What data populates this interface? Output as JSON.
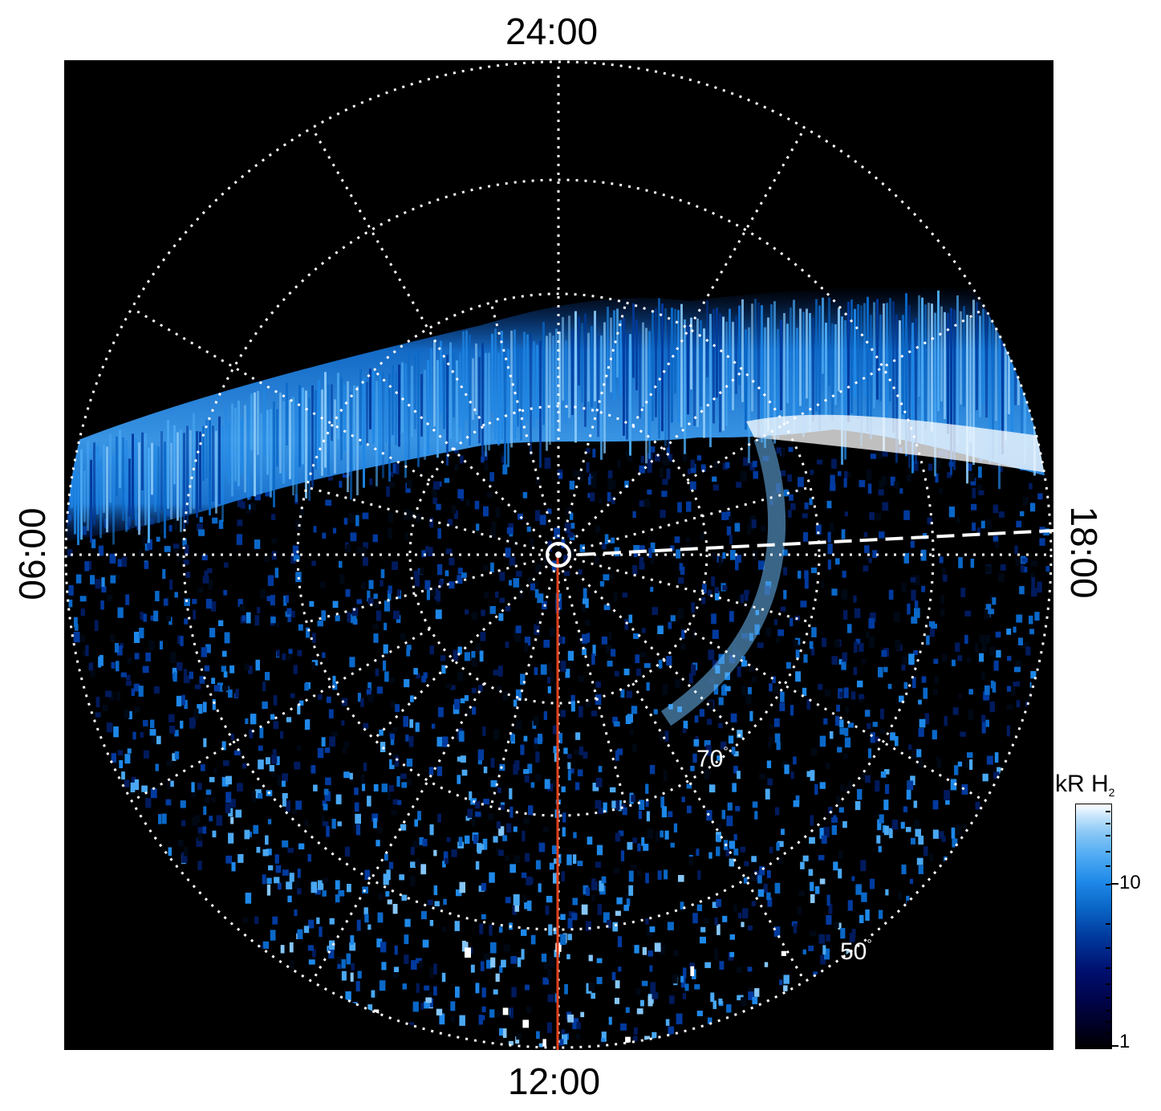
{
  "figure": {
    "local_time_labels": {
      "top": "24:00",
      "bottom": "12:00",
      "left": "06:00",
      "right": "18:00"
    },
    "latitude_labels": {
      "inner": "70",
      "outer": "50",
      "degree_symbol": "°"
    },
    "colorbar": {
      "unit": "kR H",
      "unit_subscript": "2",
      "ticks": [
        "10",
        "1"
      ],
      "scale": "log",
      "colors": [
        "#000000",
        "#00044a",
        "#003a9e",
        "#1e88e8",
        "#86c6f6",
        "#ffffff"
      ]
    },
    "colors": {
      "background": "#000000",
      "grid": "#ffffff",
      "meridian_line": "#e0401a",
      "emission": "#1e88e8"
    }
  }
}
